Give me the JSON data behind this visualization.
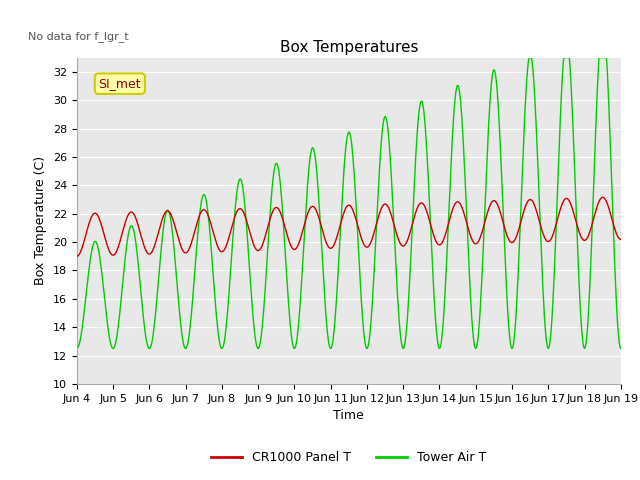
{
  "title": "Box Temperatures",
  "xlabel": "Time",
  "ylabel": "Box Temperature (C)",
  "no_data_text": "No data for f_lgr_t",
  "annotation_text": "SI_met",
  "ylim": [
    10,
    33
  ],
  "yticks": [
    10,
    12,
    14,
    16,
    18,
    20,
    22,
    24,
    26,
    28,
    30,
    32
  ],
  "xtick_labels": [
    "Jun 4",
    "Jun 5",
    "Jun 6",
    "Jun 7",
    "Jun 8",
    "Jun 9",
    "Jun 10",
    "Jun 11",
    "Jun 12",
    "Jun 13",
    "Jun 14",
    "Jun 15",
    "Jun 16",
    "Jun 17",
    "Jun 18",
    "Jun 19"
  ],
  "background_color": "#ffffff",
  "plot_bg_color": "#e8e8e8",
  "grid_color": "#ffffff",
  "line1_color": "#cc0000",
  "line2_color": "#00cc00",
  "line1_label": "CR1000 Panel T",
  "line2_label": "Tower Air T",
  "title_fontsize": 11,
  "axis_fontsize": 9,
  "tick_fontsize": 8,
  "legend_fontsize": 9,
  "figsize": [
    6.4,
    4.8
  ],
  "dpi": 100
}
